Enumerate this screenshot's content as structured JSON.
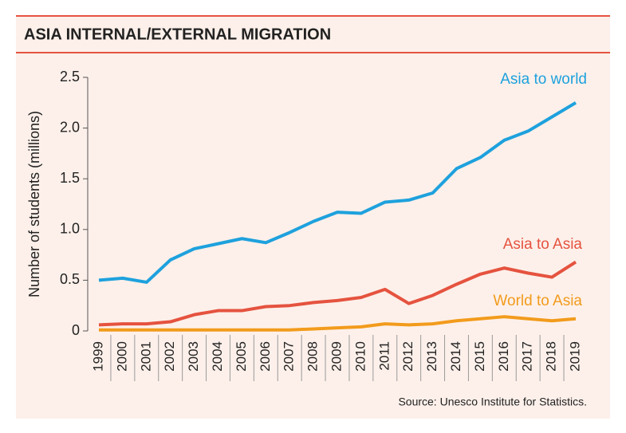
{
  "chart_data": {
    "type": "line",
    "title": "ASIA INTERNAL/EXTERNAL MIGRATION",
    "y_label": "Number of students (millions)",
    "source": "Source: Unesco Institute for Statistics.",
    "categories": [
      "1999",
      "2000",
      "2001",
      "2002",
      "2003",
      "2004",
      "2005",
      "2006",
      "2007",
      "2008",
      "2009",
      "2010",
      "2011",
      "2012",
      "2013",
      "2014",
      "2015",
      "2016",
      "2017",
      "2018",
      "2019"
    ],
    "series": [
      {
        "name": "Asia to world",
        "color": "#1ea1dd",
        "values": [
          0.5,
          0.52,
          0.48,
          0.7,
          0.81,
          0.86,
          0.91,
          0.87,
          0.97,
          1.08,
          1.17,
          1.16,
          1.27,
          1.29,
          1.36,
          1.6,
          1.71,
          1.88,
          1.97,
          2.11,
          2.25
        ]
      },
      {
        "name": "Asia to Asia",
        "color": "#e5533f",
        "values": [
          0.06,
          0.07,
          0.07,
          0.09,
          0.16,
          0.2,
          0.2,
          0.24,
          0.25,
          0.28,
          0.3,
          0.33,
          0.41,
          0.27,
          0.35,
          0.46,
          0.56,
          0.62,
          0.57,
          0.53,
          0.68
        ]
      },
      {
        "name": "World to Asia",
        "color": "#f29b1c",
        "values": [
          0.01,
          0.01,
          0.01,
          0.01,
          0.01,
          0.01,
          0.01,
          0.01,
          0.01,
          0.02,
          0.03,
          0.04,
          0.07,
          0.06,
          0.07,
          0.1,
          0.12,
          0.14,
          0.12,
          0.1,
          0.12
        ]
      }
    ],
    "ylim": [
      0,
      2.5
    ],
    "yticks": [
      0,
      0.5,
      {
        "value": 1,
        "label": "1.0"
      },
      1.5,
      {
        "value": 2,
        "label": "2.0"
      },
      2.5
    ]
  }
}
